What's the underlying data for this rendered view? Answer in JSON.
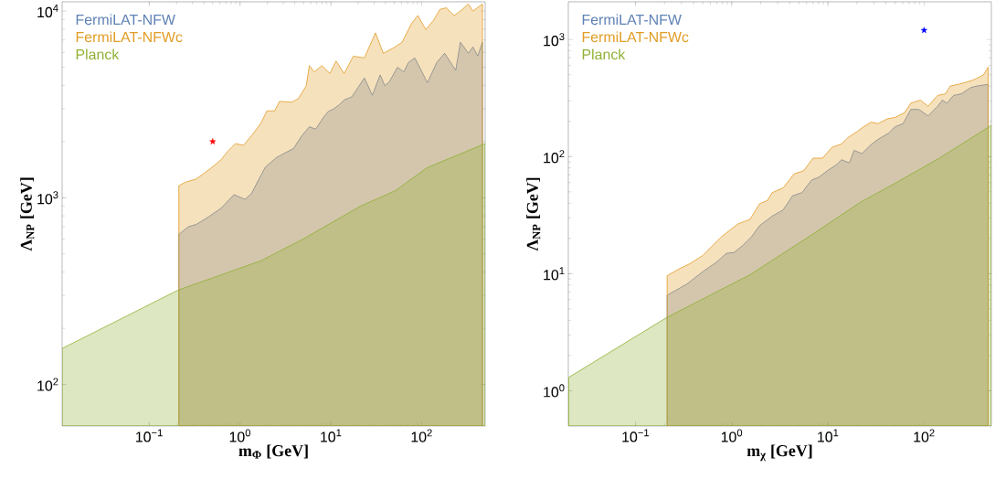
{
  "chart_data": [
    {
      "type": "area",
      "xlabel": "m$_{Φ}$ [GeV]",
      "ylabel": "Λ$_{NP}$ [GeV]",
      "log": "xy",
      "legend": "top left",
      "xlim": [
        0.011,
        500
      ],
      "ylim": [
        60,
        11200
      ],
      "xticks": [
        {
          "value": 0.1,
          "label": "10$^{−1}$"
        },
        {
          "value": 1,
          "label": "10$^{0}$"
        },
        {
          "value": 10,
          "label": "10$^{1}$"
        },
        {
          "value": 100,
          "label": "10$^{2}$"
        }
      ],
      "yticks": [
        {
          "value": 100,
          "label": "10$^{2}$"
        },
        {
          "value": 1000,
          "label": "10$^{3}$"
        },
        {
          "value": 10000,
          "label": "10$^{4}$"
        }
      ],
      "series": [
        {
          "name": "FermiLAT-NFW",
          "color": "#5e81b5",
          "x": [
            0.212,
            0.27,
            0.33,
            0.45,
            0.62,
            0.86,
            1.13,
            1.33,
            1.9,
            2.51,
            3.9,
            4.76,
            5.8,
            6.81,
            8.31,
            9.4,
            10.6,
            12.4,
            14.0,
            17.0,
            23.4,
            28.6,
            34.9,
            39.4,
            44.4,
            54.1,
            63.5,
            71.6,
            84.0,
            115.6,
            146.6,
            179,
            237,
            267,
            326,
            367,
            414,
            467
          ],
          "values": [
            637,
            700,
            720,
            790,
            880,
            1040,
            980,
            1050,
            1460,
            1640,
            1840,
            2140,
            2400,
            2330,
            2700,
            2900,
            2980,
            3150,
            3340,
            3470,
            4380,
            3540,
            4550,
            3980,
            4210,
            5000,
            4720,
            5300,
            5610,
            4130,
            5300,
            5940,
            4810,
            6810,
            5940,
            6420,
            5740,
            6810
          ]
        },
        {
          "name": "FermiLAT-NFWc",
          "color": "#e19c24",
          "x": [
            0.212,
            0.249,
            0.329,
            0.47,
            0.62,
            0.73,
            0.89,
            1.09,
            1.33,
            1.69,
            1.98,
            2.41,
            2.72,
            3.74,
            4.39,
            5.36,
            5.8,
            6.54,
            7.98,
            9.75,
            11.4,
            14.0,
            17.7,
            23.4,
            31.0,
            37.8,
            48.0,
            61.0,
            77.4,
            90.8,
            111,
            135,
            159,
            186,
            227,
            267,
            326,
            367,
            467
          ],
          "values": [
            1160,
            1210,
            1260,
            1430,
            1600,
            1770,
            1950,
            1910,
            2140,
            2500,
            2920,
            2920,
            3280,
            3250,
            3400,
            3980,
            5100,
            4720,
            5100,
            4630,
            5400,
            4630,
            5730,
            5610,
            7640,
            5940,
            6310,
            6810,
            8580,
            9460,
            7950,
            8920,
            10200,
            10400,
            9460,
            10000,
            10900,
            10000,
            10900
          ]
        },
        {
          "name": "Planck",
          "color": "#8fb032",
          "x": [
            0.011,
            0.21,
            1.7,
            5.0,
            21,
            51,
            115,
            500
          ],
          "values": [
            156,
            321,
            460,
            603,
            900,
            1090,
            1450,
            1950
          ]
        },
        {
          "type": "scatter",
          "marker": "star",
          "color": "#ff0000",
          "x": [
            0.5
          ],
          "values": [
            2000
          ]
        }
      ]
    },
    {
      "type": "area",
      "xlabel": "m$_{χ}$ [GeV]",
      "ylabel": "Λ$_{NP}$ [GeV]",
      "log": "xy",
      "legend": "top left",
      "xlim": [
        0.02,
        500
      ],
      "ylim": [
        0.5,
        2100
      ],
      "xticks": [
        {
          "value": 0.1,
          "label": "10$^{−1}$"
        },
        {
          "value": 1,
          "label": "10$^{0}$"
        },
        {
          "value": 10,
          "label": "10$^{1}$"
        },
        {
          "value": 100,
          "label": "10$^{2}$"
        }
      ],
      "yticks": [
        {
          "value": 1,
          "label": "10$^{0}$"
        },
        {
          "value": 10,
          "label": "10$^{1}$"
        },
        {
          "value": 100,
          "label": "10$^{2}$"
        },
        {
          "value": 1000,
          "label": "10$^{3}$"
        }
      ],
      "series": [
        {
          "name": "FermiLAT-NFW",
          "color": "#5e81b5",
          "x": [
            0.213,
            0.342,
            0.5,
            0.7,
            0.88,
            1.06,
            1.28,
            1.61,
            1.95,
            2.63,
            3.42,
            4.29,
            5.38,
            6.76,
            8.15,
            9.85,
            12.4,
            13.8,
            16.7,
            18.7,
            22.6,
            27.3,
            33.0,
            43.0,
            49.9,
            60.3,
            72.8,
            88,
            110,
            138,
            155,
            173,
            202,
            244,
            306,
            355,
            463
          ],
          "values": [
            6.55,
            8.15,
            10.4,
            12.6,
            14.9,
            15.2,
            17.2,
            20.7,
            25.7,
            31,
            35,
            46.3,
            49.2,
            63,
            67,
            75.7,
            85.7,
            94,
            88.4,
            113,
            106,
            124,
            140,
            159,
            180,
            191,
            253,
            253,
            223,
            269,
            304,
            286,
            333,
            344,
            389,
            401,
            414
          ]
        },
        {
          "name": "FermiLAT-NFWc",
          "color": "#e19c24",
          "x": [
            0.213,
            0.273,
            0.369,
            0.5,
            0.7,
            0.785,
            1.15,
            1.55,
            1.95,
            2.35,
            2.63,
            3.42,
            4.45,
            5.6,
            7.0,
            8.8,
            11.0,
            13.8,
            16.1,
            20.2,
            23.5,
            28.3,
            33.0,
            41.3,
            49.9,
            62.6,
            72.8,
            91.4,
            110,
            138,
            167,
            187,
            226,
            283,
            330,
            413,
            463
          ],
          "values": [
            9.6,
            10.8,
            12.2,
            14.3,
            18.9,
            20.7,
            26.5,
            29.1,
            39.6,
            42.2,
            49.2,
            54,
            71.2,
            75.7,
            97,
            97,
            120,
            128,
            145,
            164,
            180,
            197,
            191,
            210,
            216,
            237,
            286,
            304,
            269,
            333,
            344,
            401,
            414,
            435,
            454,
            498,
            580
          ]
        },
        {
          "name": "Planck",
          "color": "#8fb032",
          "x": [
            0.0202,
            0.213,
            1.55,
            6.0,
            21.8,
            49.9,
            144,
            500
          ],
          "values": [
            1.3,
            4.24,
            9.8,
            20.1,
            40.8,
            59.2,
            97,
            185
          ]
        },
        {
          "type": "scatter",
          "marker": "star",
          "color": "#0000ff",
          "x": [
            100
          ],
          "values": [
            1200
          ]
        }
      ]
    }
  ]
}
